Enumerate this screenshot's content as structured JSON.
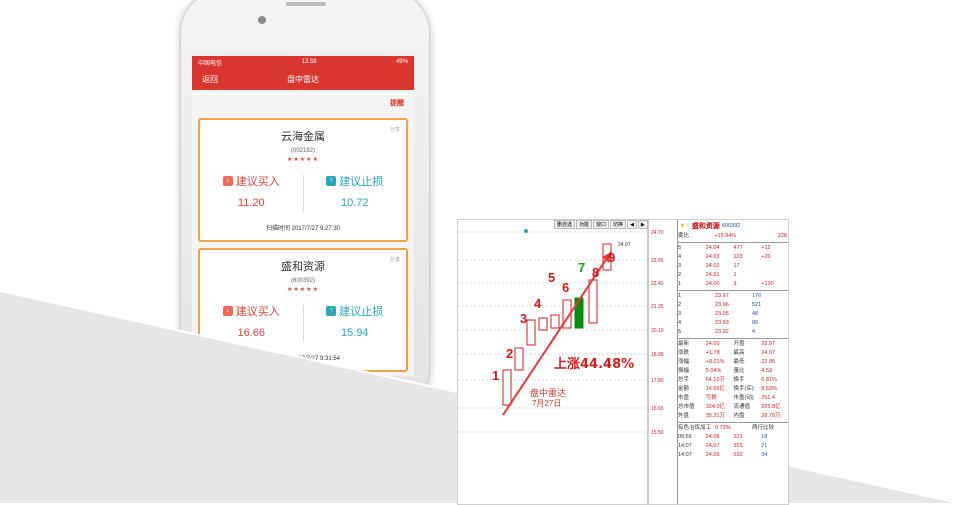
{
  "phone": {
    "status": {
      "carrier": "中国电信",
      "time": "13:59",
      "battery": "49%"
    },
    "nav": {
      "back": "返回",
      "title": "盘中雷达"
    },
    "remind": "提醒",
    "cards": [
      {
        "name": "云海金属",
        "code": "(002182)",
        "stars": "★★★★★",
        "share": "分享",
        "buy_label": "建议买入",
        "buy_value": "11.20",
        "stop_label": "建议止损",
        "stop_value": "10.72",
        "scan": "扫描时间 2017/7/27 9:27:30"
      },
      {
        "name": "盛和资源",
        "code": "(600392)",
        "stars": "★★★★★",
        "share": "分享",
        "buy_label": "建议买入",
        "buy_value": "16.66",
        "stop_label": "建议止损",
        "stop_value": "15.94",
        "scan": "扫描时间 2017/7/27 9:31:54"
      }
    ]
  },
  "chart": {
    "toolbar": [
      "删自选",
      "功能",
      "窗口",
      "切换",
      "◀",
      "▶"
    ],
    "price_labels": [
      "24.70",
      "23.55",
      "22.40",
      "21.25",
      "20.10",
      "18.95",
      "17.80",
      "16.65",
      "15.50"
    ],
    "top_label": "24.07",
    "numbers": [
      "1",
      "2",
      "3",
      "4",
      "5",
      "6",
      "7",
      "8",
      "9"
    ],
    "rise_text": "上涨44.48%",
    "radar_text": "盘中雷达",
    "date_text": "7月27日",
    "colors": {
      "up": "#d41e1e",
      "down": "#0a8a0a",
      "arrow": "#e33b3b"
    }
  },
  "orderbook": {
    "title": "盛和资源",
    "code": "600392",
    "wei": {
      "label": "委比",
      "value": "+15.94%",
      "count": "228"
    },
    "sell": [
      {
        "n": "5",
        "p": "24.04",
        "v": "477",
        "c": "+12"
      },
      {
        "n": "4",
        "p": "24.03",
        "v": "103",
        "c": "+20"
      },
      {
        "n": "3",
        "p": "24.02",
        "v": "17",
        "c": ""
      },
      {
        "n": "2",
        "p": "24.01",
        "v": "1",
        "c": ""
      },
      {
        "n": "1",
        "p": "24.00",
        "v": "3",
        "c": "+130"
      }
    ],
    "buy": [
      {
        "n": "1",
        "p": "23.97",
        "v": "176"
      },
      {
        "n": "2",
        "p": "23.96",
        "v": "521"
      },
      {
        "n": "3",
        "p": "23.95",
        "v": "48"
      },
      {
        "n": "4",
        "p": "23.93",
        "v": "80"
      },
      {
        "n": "5",
        "p": "23.92",
        "v": "4"
      }
    ],
    "stats": [
      [
        "最新",
        "24.00",
        "开盘",
        "22.97"
      ],
      [
        "涨跌",
        "+1.78",
        "最高",
        "24.07"
      ],
      [
        "涨幅",
        "+8.01%",
        "最低",
        "22.95"
      ],
      [
        "振幅",
        "5.04%",
        "量比",
        "4.53"
      ],
      [
        "总手",
        "64.10万",
        "换手",
        "6.81%"
      ],
      [
        "金额",
        "14.96亿",
        "换手(实)",
        "8.53%"
      ],
      [
        "市盈",
        "亏损",
        "市盈(动)",
        "251.4"
      ],
      [
        "总市值",
        "324.0亿",
        "流通值",
        "225.8亿"
      ],
      [
        "外盘",
        "35.31万",
        "内盘",
        "28.79万"
      ]
    ],
    "industry": {
      "label": "有色冶炼加工",
      "value": "0.73%",
      "tag": "两行比较"
    },
    "ticks": [
      {
        "t": "09:56",
        "p": "24.06",
        "v": "321",
        "d": "18"
      },
      {
        "t": "14:07",
        "p": "24.07",
        "v": "355",
        "d": "21"
      },
      {
        "t": "14:07",
        "p": "24.06",
        "v": "632",
        "d": "34"
      }
    ]
  }
}
